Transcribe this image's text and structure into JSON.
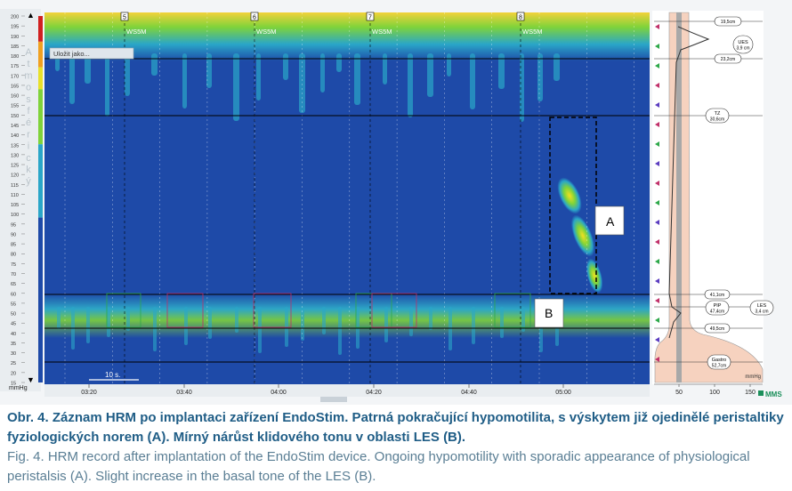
{
  "chart_data": {
    "type": "heatmap",
    "yaxis": {
      "unit": "mmHg",
      "range": [
        15,
        200
      ],
      "ticks": [
        200,
        195,
        190,
        185,
        180,
        175,
        170,
        165,
        160,
        155,
        150,
        145,
        140,
        135,
        130,
        125,
        120,
        115,
        110,
        105,
        100,
        95,
        90,
        85,
        80,
        75,
        70,
        65,
        60,
        55,
        50,
        45,
        40,
        35,
        30,
        25,
        20,
        15
      ]
    },
    "side_label": "Atmosférický",
    "xaxis": {
      "ticks": [
        "03:20",
        "03:40",
        "04:00",
        "04:20",
        "04:40",
        "05:00"
      ],
      "scale_bar": "10 s."
    },
    "button_label": "Uložit jako...",
    "swallows": [
      {
        "label": "WS5M",
        "marker": "5"
      },
      {
        "label": "WS5M",
        "marker": "6"
      },
      {
        "label": "WS5M",
        "marker": "7"
      },
      {
        "label": "WS5M",
        "marker": "8"
      }
    ],
    "annotations": [
      "A",
      "B"
    ],
    "profile": {
      "axis_ticks": [
        "50",
        "100",
        "150"
      ],
      "axis_unit": "mmHg",
      "labels": [
        {
          "name": "UES",
          "value": "3,9 cm"
        },
        {
          "name": "",
          "value": "19,5cm"
        },
        {
          "name": "",
          "value": "23,2cm"
        },
        {
          "name": "TZ",
          "value": "30,6cm"
        },
        {
          "name": "",
          "value": "41,1cm"
        },
        {
          "name": "PIP",
          "value": "47,4cm"
        },
        {
          "name": "LES",
          "value": "3,4 cm"
        },
        {
          "name": "",
          "value": "49,5cm"
        },
        {
          "name": "Gastro",
          "value": "52,7cm"
        }
      ]
    },
    "logo": "MMS"
  },
  "caption": {
    "cz": "Obr. 4. Záznam HRM po implantaci zařízení EndoStim. Patrná pokračující hypomotilita, s výskytem již ojedinělé peri­staltiky fyziologických norem (A). Mírný nárůst klidového tonu v oblasti LES (B).",
    "en": "Fig. 4. HRM record after implantation of the EndoStim device. Ongoing hypomotility with sporadic appearance of physiologi­cal peristalsis (A). Slight increase in the basal tone of the LES (B)."
  },
  "colors": {
    "background_blue": "#1e4aa8",
    "high_pressure_green": "#7fd33a",
    "peak_yellow": "#f2e020",
    "esophagus_fill": "#f6d2bf"
  }
}
